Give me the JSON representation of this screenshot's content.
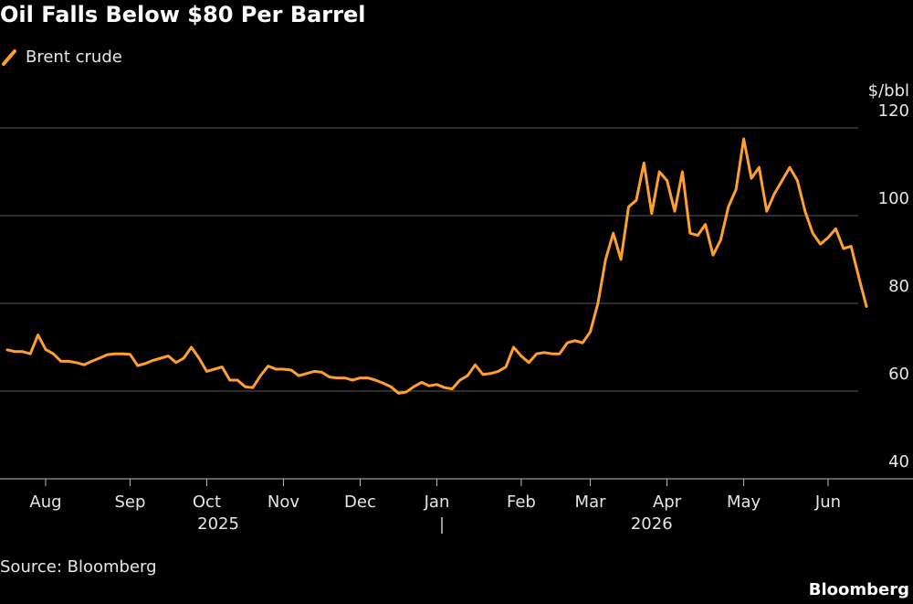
{
  "chart_data": {
    "type": "line",
    "title": "Oil Falls Below $80 Per Barrel",
    "y_axis_label": "$/bbl",
    "source": "Source: Bloomberg",
    "brand": "Bloomberg",
    "year_labels": [
      "2025",
      "2026"
    ],
    "categories": [
      null,
      null,
      null,
      null,
      null,
      "Aug",
      null,
      null,
      null,
      null,
      null,
      null,
      null,
      null,
      null,
      null,
      "Sep",
      null,
      null,
      null,
      null,
      null,
      null,
      null,
      null,
      null,
      "Oct",
      null,
      null,
      null,
      null,
      null,
      null,
      null,
      null,
      null,
      "Nov",
      null,
      null,
      null,
      null,
      null,
      null,
      null,
      null,
      null,
      "Dec",
      null,
      null,
      null,
      null,
      null,
      null,
      null,
      null,
      null,
      "Jan",
      null,
      null,
      null,
      null,
      null,
      null,
      null,
      null,
      null,
      null,
      "Feb",
      null,
      null,
      null,
      null,
      null,
      null,
      null,
      null,
      "Mar",
      null,
      null,
      null,
      null,
      null,
      null,
      null,
      null,
      null,
      "Apr",
      null,
      null,
      null,
      null,
      null,
      null,
      null,
      null,
      null,
      "May",
      null,
      null,
      null,
      null,
      null,
      null,
      null,
      null,
      null,
      null,
      "Jun",
      null,
      null,
      null,
      null,
      null
    ],
    "series": [
      {
        "name": "Brent crude",
        "color": "#ffa02e",
        "values": [
          69.4,
          69,
          69,
          68.5,
          72.8,
          69.5,
          68.5,
          66.8,
          66.8,
          66.5,
          66,
          66.8,
          67.5,
          68.3,
          68.5,
          68.5,
          68.4,
          65.8,
          66.3,
          67,
          67.5,
          68,
          66.5,
          67.5,
          70,
          67.5,
          64.5,
          65,
          65.5,
          62.5,
          62.5,
          61,
          60.8,
          63.5,
          65.7,
          65,
          65,
          64.8,
          63.5,
          64,
          64.5,
          64.3,
          63.2,
          63,
          63,
          62.5,
          63,
          63,
          62.5,
          61.8,
          61,
          59.5,
          59.8,
          61,
          62,
          61.2,
          61.5,
          60.8,
          60.5,
          62.5,
          63.5,
          66,
          63.8,
          64,
          64.5,
          65.5,
          70,
          68,
          66.5,
          68.5,
          68.8,
          68.5,
          68.5,
          71,
          71.5,
          71,
          73.5,
          80,
          90,
          96,
          90,
          102,
          103.5,
          112,
          100.5,
          110,
          108,
          101,
          110,
          96,
          95.5,
          98,
          91,
          94.5,
          102,
          106,
          117.5,
          108.5,
          111,
          101,
          105,
          108,
          111,
          108,
          101,
          96,
          93.5,
          95,
          97,
          92.5,
          93,
          86,
          79.3
        ]
      }
    ],
    "ylim": [
      40,
      120
    ],
    "yticks": [
      40,
      60,
      80,
      100,
      120
    ],
    "grid": true
  }
}
